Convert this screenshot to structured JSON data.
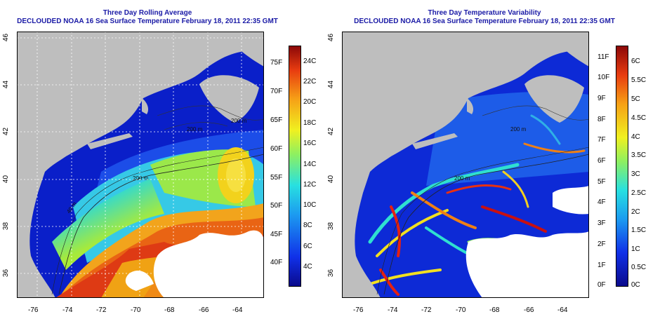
{
  "panels": [
    {
      "title_line1": "Three Day Rolling Average",
      "title_line2": "DECLOUDED NOAA 16 Sea Surface Temperature February 18, 2011 22:35 GMT",
      "lon_ticks": [
        "-76",
        "-74",
        "-72",
        "-70",
        "-68",
        "-66",
        "-64"
      ],
      "lat_ticks": [
        "36",
        "38",
        "40",
        "42",
        "44",
        "46"
      ],
      "depth_labels": [
        "200 m",
        "200 m",
        "200 m",
        "40 m"
      ],
      "colorbar": {
        "left_labels": [
          "75F",
          "70F",
          "65F",
          "60F",
          "55F",
          "50F",
          "45F",
          "40F"
        ],
        "right_labels": [
          "24C",
          "22C",
          "20C",
          "18C",
          "16C",
          "14C",
          "12C",
          "10C",
          "8C",
          "6C",
          "4C"
        ]
      }
    },
    {
      "title_line1": "Three Day Temperature Variability",
      "title_line2": "DECLOUDED NOAA 16 Sea Surface Temperature February 18, 2011 22:35 GMT",
      "lon_ticks": [
        "-76",
        "-74",
        "-72",
        "-70",
        "-68",
        "-66",
        "-64"
      ],
      "lat_ticks": [
        "36",
        "38",
        "40",
        "42",
        "44",
        "46"
      ],
      "depth_labels": [
        "200 m",
        "200 m"
      ],
      "colorbar": {
        "left_labels": [
          "11F",
          "10F",
          "9F",
          "8F",
          "7F",
          "6F",
          "5F",
          "4F",
          "3F",
          "2F",
          "1F",
          "0F"
        ],
        "right_labels": [
          "6C",
          "5.5C",
          "5C",
          "4.5C",
          "4C",
          "3.5C",
          "3C",
          "2.5C",
          "2C",
          "1.5C",
          "1C",
          "0.5C",
          "0C"
        ]
      }
    }
  ],
  "colors": {
    "land": "#bebebe",
    "cloud": "#ffffff",
    "title": "#1a1aa6"
  }
}
